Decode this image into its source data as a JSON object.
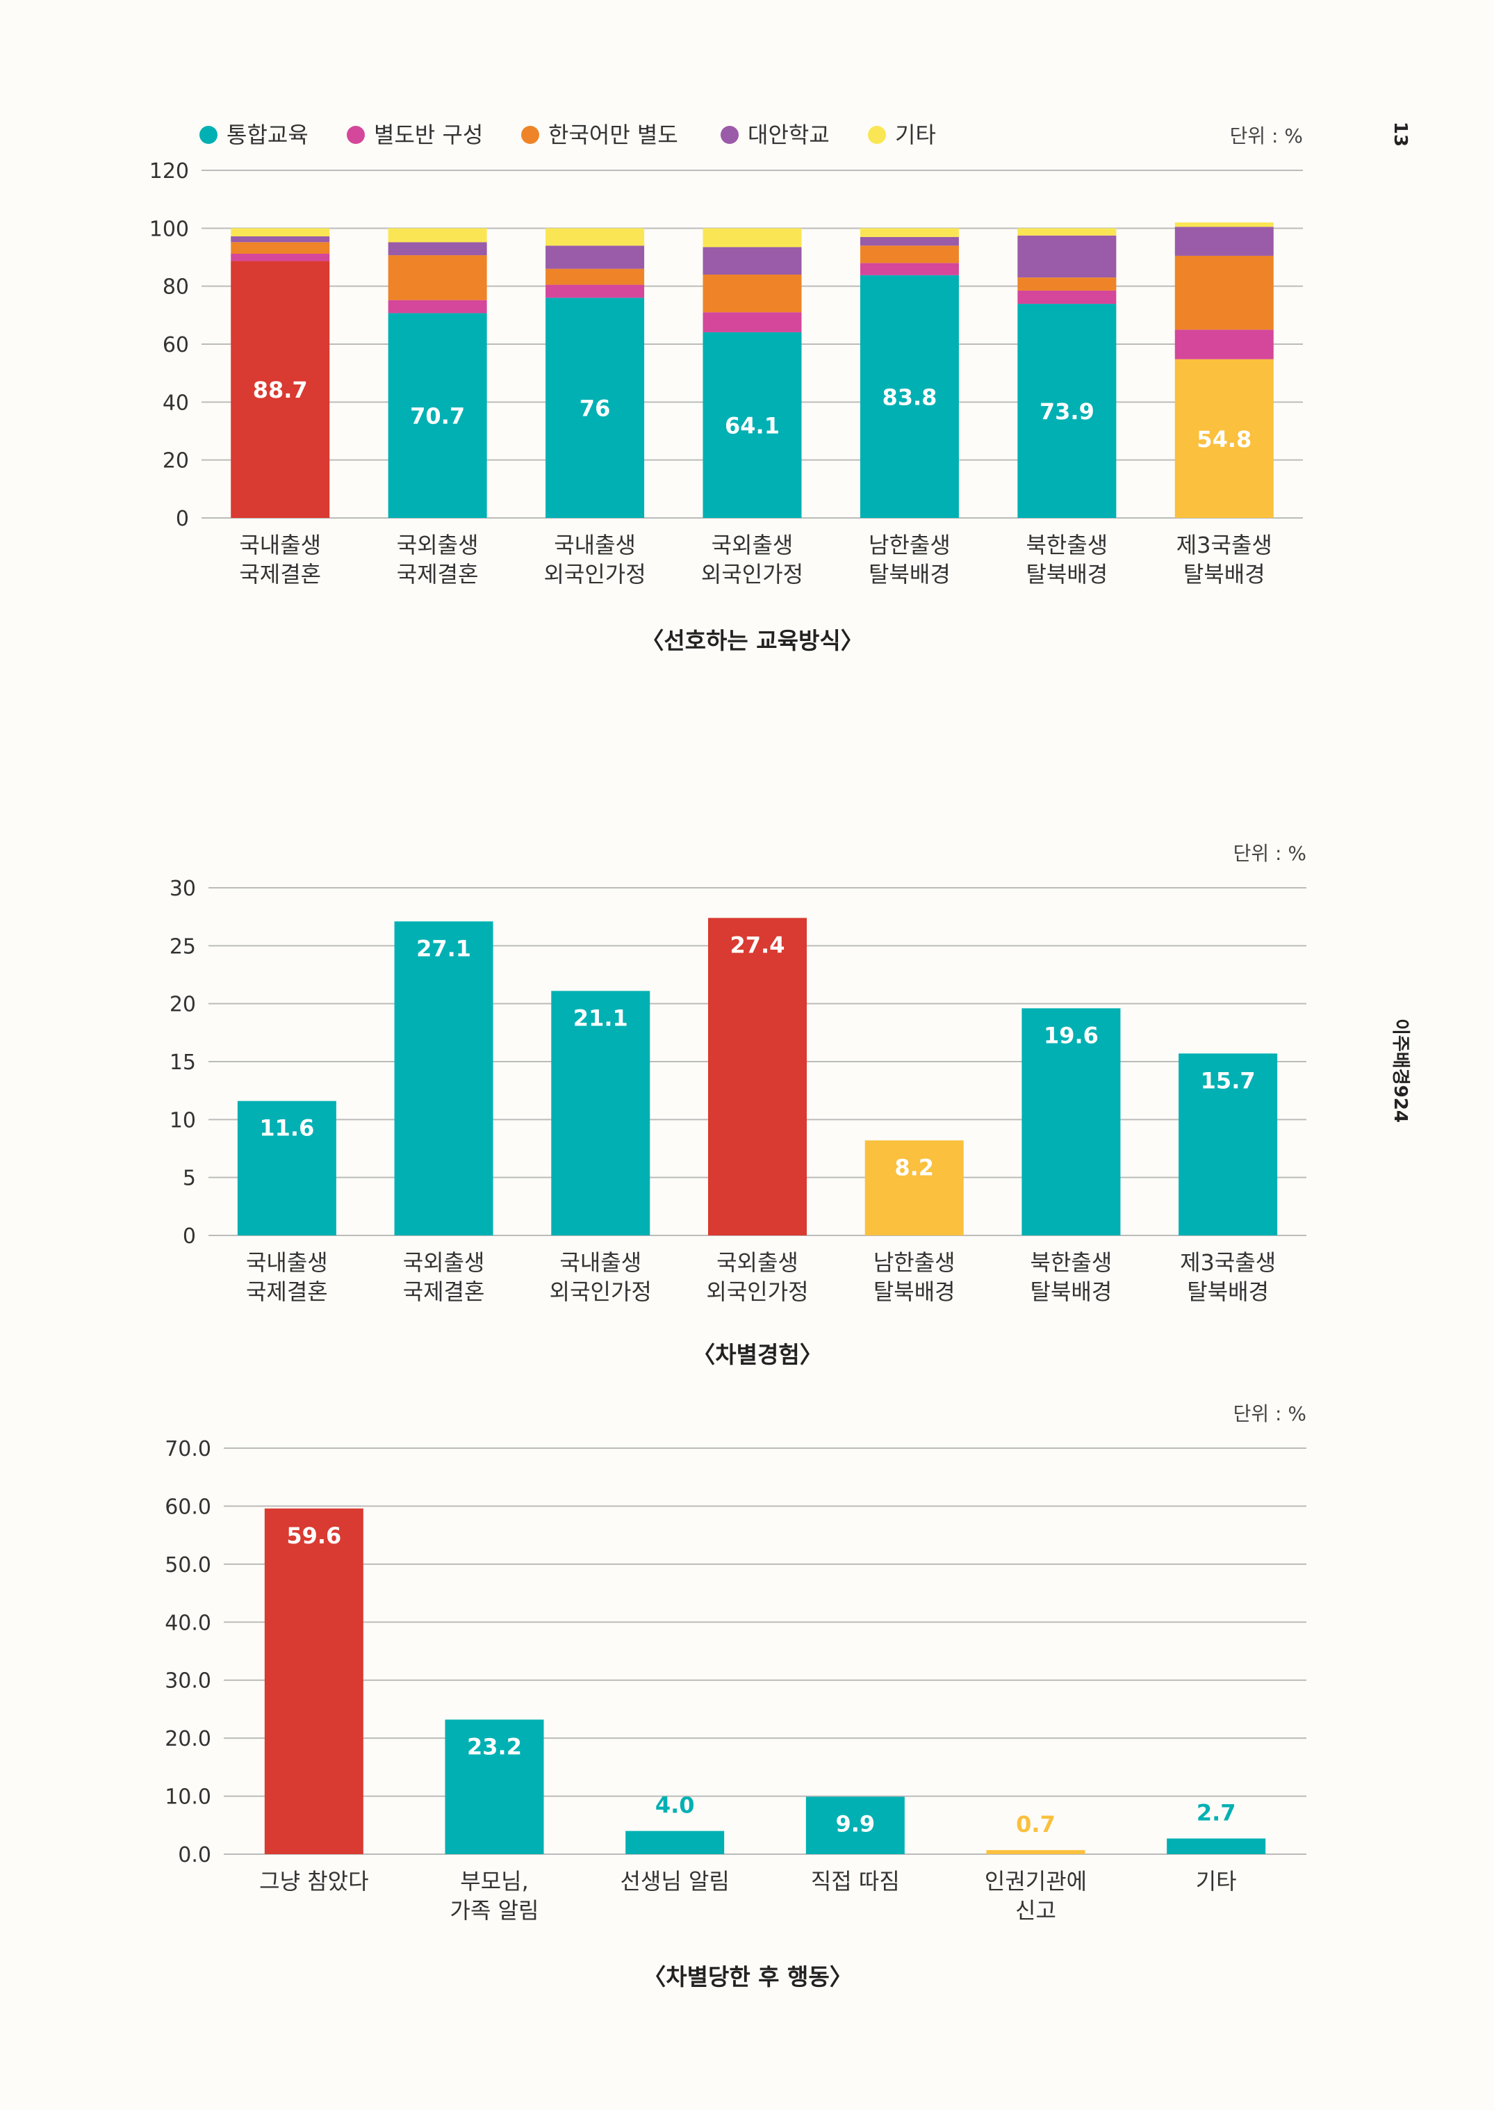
{
  "page_number": "13",
  "side_title": "이주배경924",
  "colors": {
    "teal": "#00b0b3",
    "red": "#d93a31",
    "yellow": "#fac03e",
    "pink": "#d4479a",
    "orange": "#ee8427",
    "purple": "#9a5ba8",
    "light_yellow": "#fae654",
    "grid": "#bbbbbb",
    "text": "#333333"
  },
  "chart_data": [
    {
      "type": "bar",
      "stacked": true,
      "title": "〈선호하는 교육방식〉",
      "unit": "단위 : %",
      "categories": [
        [
          "국내출생",
          "국제결혼"
        ],
        [
          "국외출생",
          "국제결혼"
        ],
        [
          "국내출생",
          "외국인가정"
        ],
        [
          "국외출생",
          "외국인가정"
        ],
        [
          "남한출생",
          "탈북배경"
        ],
        [
          "북한출생",
          "탈북배경"
        ],
        [
          "제3국출생",
          "탈북배경"
        ]
      ],
      "yticks": [
        "0",
        "20",
        "40",
        "60",
        "80",
        "100",
        "120"
      ],
      "ylim": [
        0,
        120
      ],
      "legend_position": "top",
      "series": [
        {
          "name": "통합교육",
          "color": "#00b0b3",
          "values": [
            88.7,
            70.7,
            76,
            64.1,
            83.8,
            73.9,
            54.8
          ]
        },
        {
          "name": "별도반 구성",
          "color": "#d4479a",
          "values": [
            2.5,
            4.5,
            4.5,
            6.9,
            4.2,
            4.6,
            10.2
          ]
        },
        {
          "name": "한국어만 별도",
          "color": "#ee8427",
          "values": [
            4,
            15.5,
            5.5,
            13,
            6,
            4.5,
            25.5
          ]
        },
        {
          "name": "대안학교",
          "color": "#9a5ba8",
          "values": [
            2,
            4.5,
            8,
            9.5,
            3,
            14.5,
            10
          ]
        },
        {
          "name": "기타",
          "color": "#fae654",
          "values": [
            2.8,
            4.8,
            6,
            6.5,
            3,
            2.5,
            1.5
          ]
        }
      ],
      "labels": [
        "88.7",
        "70.7",
        "76",
        "64.1",
        "83.8",
        "73.9",
        "54.8"
      ],
      "first_segment_colors": [
        "#d93a31",
        "#00b0b3",
        "#00b0b3",
        "#00b0b3",
        "#00b0b3",
        "#00b0b3",
        "#fac03e"
      ],
      "grid": true
    },
    {
      "type": "bar",
      "title": "〈차별경험〉",
      "unit": "단위 : %",
      "categories": [
        [
          "국내출생",
          "국제결혼"
        ],
        [
          "국외출생",
          "국제결혼"
        ],
        [
          "국내출생",
          "외국인가정"
        ],
        [
          "국외출생",
          "외국인가정"
        ],
        [
          "남한출생",
          "탈북배경"
        ],
        [
          "북한출생",
          "탈북배경"
        ],
        [
          "제3국출생",
          "탈북배경"
        ]
      ],
      "values": [
        11.6,
        27.1,
        21.1,
        27.4,
        8.2,
        19.6,
        15.7
      ],
      "labels": [
        "11.6",
        "27.1",
        "21.1",
        "27.4",
        "8.2",
        "19.6",
        "15.7"
      ],
      "colors": [
        "#00b0b3",
        "#00b0b3",
        "#00b0b3",
        "#d93a31",
        "#fac03e",
        "#00b0b3",
        "#00b0b3"
      ],
      "yticks": [
        "0",
        "5",
        "10",
        "15",
        "20",
        "25",
        "30"
      ],
      "ylim": [
        0,
        30
      ],
      "grid": true
    },
    {
      "type": "bar",
      "title": "〈차별당한 후 행동〉",
      "unit": "단위 : %",
      "categories": [
        [
          "그냥 참았다"
        ],
        [
          "부모님,",
          "가족 알림"
        ],
        [
          "선생님 알림"
        ],
        [
          "직접 따짐"
        ],
        [
          "인권기관에",
          "신고"
        ],
        [
          "기타"
        ]
      ],
      "values": [
        59.6,
        23.2,
        4.0,
        9.9,
        0.7,
        2.7
      ],
      "labels": [
        "59.6",
        "23.2",
        "4.0",
        "9.9",
        "0.7",
        "2.7"
      ],
      "colors": [
        "#d93a31",
        "#00b0b3",
        "#00b0b3",
        "#00b0b3",
        "#fac03e",
        "#00b0b3"
      ],
      "yticks": [
        "0.0",
        "10.0",
        "20.0",
        "30.0",
        "40.0",
        "50.0",
        "60.0",
        "70.0"
      ],
      "ylim": [
        0,
        70
      ],
      "grid": true
    }
  ]
}
